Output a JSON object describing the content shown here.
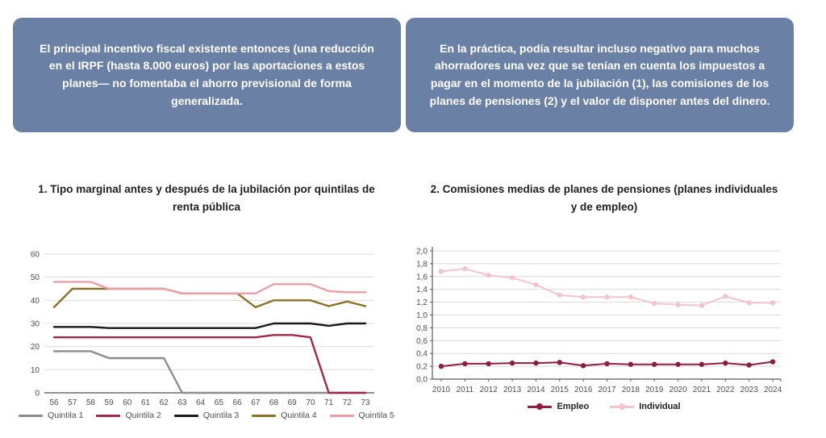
{
  "page": {
    "background": "#ffffff"
  },
  "callout_style": {
    "bg": "#6a80a5",
    "text_color": "#ffffff"
  },
  "callouts": [
    {
      "text": "El principal incentivo fiscal existente entonces (una reducción en el IRPF (hasta 8.000 euros) por las aportaciones a estos planes— no fomentaba el ahorro previsional de forma generalizada."
    },
    {
      "text": "En la práctica, podía resultar incluso negativo para muchos ahorradores una vez que se tenían en cuenta los impuestos a pagar en el momento de la jubilación (1), las comisiones de los planes de pensiones (2) y el valor de disponer antes del dinero."
    }
  ],
  "chart_data": [
    {
      "type": "line",
      "title": "1. Tipo marginal antes y después de la jubilación por quintilas de renta pública",
      "x": [
        56,
        57,
        58,
        59,
        60,
        61,
        62,
        63,
        64,
        65,
        66,
        67,
        68,
        69,
        70,
        71,
        72,
        73
      ],
      "ylim": [
        0,
        60
      ],
      "yticks": [
        0,
        10,
        20,
        30,
        40,
        50,
        60
      ],
      "ytick_labels": [
        "0",
        "10",
        "20",
        "30",
        "40",
        "50",
        "60"
      ],
      "grid": true,
      "markers": false,
      "legend_position": "bottom",
      "series": [
        {
          "name": "Quintila 1",
          "color": "#8c8c8c",
          "values": [
            18,
            18,
            18,
            15,
            15,
            15,
            15,
            0,
            0,
            0,
            0,
            0,
            0,
            0,
            0,
            0,
            0,
            0
          ]
        },
        {
          "name": "Quintila 2",
          "color": "#a12945",
          "values": [
            24,
            24,
            24,
            24,
            24,
            24,
            24,
            24,
            24,
            24,
            24,
            24,
            25,
            25,
            24,
            0,
            0,
            0
          ]
        },
        {
          "name": "Quintila 3",
          "color": "#1a1a1a",
          "values": [
            28.5,
            28.5,
            28.5,
            28,
            28,
            28,
            28,
            28,
            28,
            28,
            28,
            28,
            30,
            30,
            30,
            29,
            30,
            30
          ]
        },
        {
          "name": "Quintila 4",
          "color": "#8a7228",
          "values": [
            37,
            45,
            45,
            45,
            45,
            45,
            45,
            43,
            43,
            43,
            43,
            37,
            40,
            40,
            40,
            37.5,
            39.5,
            37.5
          ]
        },
        {
          "name": "Quintila 5",
          "color": "#ec9ea7",
          "values": [
            48,
            48,
            48,
            45,
            45,
            45,
            45,
            43,
            43,
            43,
            43,
            43,
            47,
            47,
            47,
            44,
            43.5,
            43.5
          ]
        }
      ]
    },
    {
      "type": "line",
      "title": "2. Comisiones medias de planes de pensiones (planes individuales y de empleo)",
      "x": [
        2010,
        2011,
        2012,
        2013,
        2014,
        2015,
        2016,
        2017,
        2018,
        2019,
        2020,
        2021,
        2022,
        2023,
        2024
      ],
      "ylim": [
        0,
        2
      ],
      "yticks": [
        0,
        0.2,
        0.4,
        0.6,
        0.8,
        1.0,
        1.2,
        1.4,
        1.6,
        1.8,
        2.0
      ],
      "ytick_labels": [
        "0,0",
        "0,2",
        "0,4",
        "0,6",
        "0,8",
        "1,0",
        "1,2",
        "1,4",
        "1,6",
        "1,8",
        "2,0"
      ],
      "grid": true,
      "markers": true,
      "legend_position": "bottom",
      "series": [
        {
          "name": "Empleo",
          "color": "#8e1c3c",
          "values": [
            0.2,
            0.24,
            0.24,
            0.25,
            0.25,
            0.26,
            0.21,
            0.24,
            0.23,
            0.23,
            0.23,
            0.23,
            0.25,
            0.22,
            0.27
          ]
        },
        {
          "name": "Individual",
          "color": "#f3c5cb",
          "values": [
            1.68,
            1.72,
            1.62,
            1.58,
            1.47,
            1.31,
            1.28,
            1.28,
            1.28,
            1.18,
            1.16,
            1.15,
            1.29,
            1.19,
            1.19
          ]
        }
      ]
    }
  ]
}
